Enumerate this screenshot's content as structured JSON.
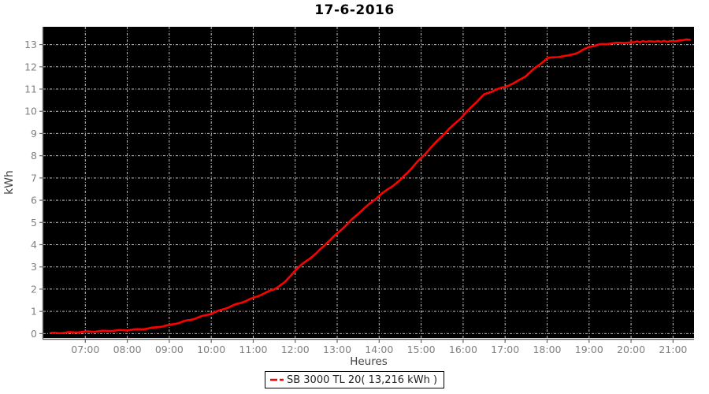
{
  "title": "17-6-2016",
  "axes": {
    "y_label": "kWh",
    "x_label": "Heures"
  },
  "legend": {
    "label": "SB 3000 TL 20( 13,216 kWh )"
  },
  "colors": {
    "series": "#ff0000",
    "plot_bg": "#000000",
    "grid": "#bfbfbf",
    "axis_line": "#666666",
    "tick_text": "#808080",
    "axis_label_text": "#444444",
    "page_bg": "#ffffff",
    "title_text": "#000000"
  },
  "chart_data": {
    "type": "line",
    "title": "17-6-2016",
    "xlabel": "Heures",
    "ylabel": "kWh",
    "grid": true,
    "legend_position": "bottom",
    "xlim_hours": [
      6.0,
      21.5
    ],
    "ylim": [
      -0.2,
      13.8
    ],
    "y_ticks": [
      0,
      1,
      2,
      3,
      4,
      5,
      6,
      7,
      8,
      9,
      10,
      11,
      12,
      13
    ],
    "x_ticks": [
      {
        "hour": 7,
        "label": "07:00"
      },
      {
        "hour": 8,
        "label": "08:00"
      },
      {
        "hour": 9,
        "label": "09:00"
      },
      {
        "hour": 10,
        "label": "10:00"
      },
      {
        "hour": 11,
        "label": "11:00"
      },
      {
        "hour": 12,
        "label": "12:00"
      },
      {
        "hour": 13,
        "label": "13:00"
      },
      {
        "hour": 14,
        "label": "14:00"
      },
      {
        "hour": 15,
        "label": "15:00"
      },
      {
        "hour": 16,
        "label": "16:00"
      },
      {
        "hour": 17,
        "label": "17:00"
      },
      {
        "hour": 18,
        "label": "18:00"
      },
      {
        "hour": 19,
        "label": "19:00"
      },
      {
        "hour": 20,
        "label": "20:00"
      },
      {
        "hour": 21,
        "label": "21:00"
      }
    ],
    "series": [
      {
        "name": "SB 3000 TL 20",
        "total": "13,216 kWh",
        "color": "#ff0000",
        "points": [
          [
            6.17,
            0.02
          ],
          [
            6.5,
            0.04
          ],
          [
            6.75,
            0.06
          ],
          [
            7.0,
            0.08
          ],
          [
            7.25,
            0.1
          ],
          [
            7.5,
            0.12
          ],
          [
            7.75,
            0.14
          ],
          [
            8.0,
            0.16
          ],
          [
            8.25,
            0.19
          ],
          [
            8.5,
            0.23
          ],
          [
            8.75,
            0.3
          ],
          [
            9.0,
            0.38
          ],
          [
            9.25,
            0.5
          ],
          [
            9.5,
            0.62
          ],
          [
            9.75,
            0.76
          ],
          [
            10.0,
            0.9
          ],
          [
            10.25,
            1.07
          ],
          [
            10.5,
            1.25
          ],
          [
            10.75,
            1.42
          ],
          [
            11.0,
            1.6
          ],
          [
            11.25,
            1.8
          ],
          [
            11.5,
            2.0
          ],
          [
            11.75,
            2.3
          ],
          [
            12.0,
            2.85
          ],
          [
            12.25,
            3.25
          ],
          [
            12.5,
            3.6
          ],
          [
            12.75,
            4.08
          ],
          [
            13.0,
            4.5
          ],
          [
            13.25,
            4.95
          ],
          [
            13.5,
            5.4
          ],
          [
            13.75,
            5.8
          ],
          [
            14.0,
            6.2
          ],
          [
            14.25,
            6.55
          ],
          [
            14.5,
            6.9
          ],
          [
            14.75,
            7.4
          ],
          [
            15.0,
            7.9
          ],
          [
            15.25,
            8.4
          ],
          [
            15.5,
            8.9
          ],
          [
            15.75,
            9.35
          ],
          [
            16.0,
            9.8
          ],
          [
            16.25,
            10.3
          ],
          [
            16.5,
            10.75
          ],
          [
            16.75,
            10.95
          ],
          [
            17.0,
            11.1
          ],
          [
            17.25,
            11.3
          ],
          [
            17.5,
            11.6
          ],
          [
            17.75,
            12.0
          ],
          [
            18.0,
            12.38
          ],
          [
            18.25,
            12.45
          ],
          [
            18.5,
            12.5
          ],
          [
            18.75,
            12.65
          ],
          [
            19.0,
            12.9
          ],
          [
            19.25,
            13.0
          ],
          [
            19.5,
            13.05
          ],
          [
            19.75,
            13.08
          ],
          [
            20.0,
            13.1
          ],
          [
            20.5,
            13.13
          ],
          [
            21.0,
            13.16
          ],
          [
            21.4,
            13.216
          ]
        ]
      }
    ]
  },
  "layout_note": ""
}
